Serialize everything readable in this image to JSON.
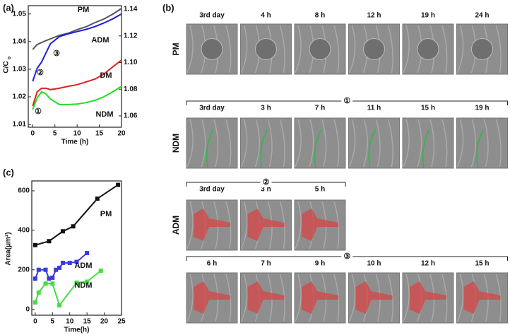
{
  "panel_labels": [
    "(a)",
    "(b)",
    "(c)"
  ],
  "chart_data": [
    {
      "type": "line",
      "xlabel": "Time (h)",
      "ylabel": "C/C",
      "ylabel_sub": "o",
      "x": [
        0,
        1,
        2,
        3,
        4,
        6,
        8,
        10,
        12,
        14,
        16,
        18,
        20
      ],
      "xlim": [
        -1,
        20
      ],
      "xticks": [
        0,
        5,
        10,
        15,
        20
      ],
      "ylim": [
        1.009,
        1.053
      ],
      "yticks": [
        1.01,
        1.02,
        1.03,
        1.04,
        1.05
      ],
      "y2lim": [
        1.0515,
        1.1427
      ],
      "y2ticks": [
        1.06,
        1.08,
        {
          "value": 1.1,
          "label": "1.10"
        },
        1.12,
        1.14
      ],
      "annotations": [
        "①",
        "②",
        "③"
      ],
      "series": [
        {
          "name": "PM",
          "color": "#555555",
          "axis": "y2",
          "values": [
            1.1098,
            1.1135,
            1.1151,
            1.1165,
            1.1178,
            1.1204,
            1.122,
            1.1247,
            1.1268,
            1.13,
            1.1326,
            1.1363,
            1.1405
          ]
        },
        {
          "name": "ADM",
          "color": "#1f1fe0",
          "values": [
            1.0256,
            1.0303,
            1.0326,
            1.0359,
            1.0392,
            1.0418,
            1.0428,
            1.0436,
            1.0444,
            1.0454,
            1.0467,
            1.0482,
            1.05
          ]
        },
        {
          "name": "DM",
          "color": "#e02020",
          "values": [
            1.0167,
            1.0218,
            1.0231,
            1.0231,
            1.0226,
            1.0231,
            1.0238,
            1.0244,
            1.0254,
            1.0264,
            1.0282,
            1.0308,
            1.0333
          ]
        },
        {
          "name": "NDM",
          "color": "#22dd22",
          "values": [
            1.0154,
            1.0197,
            1.0218,
            1.021,
            1.0192,
            1.0172,
            1.0172,
            1.0174,
            1.0179,
            1.0187,
            1.02,
            1.0218,
            1.0238
          ]
        }
      ]
    },
    {
      "type": "line",
      "markers": true,
      "xlabel": "Time(h)",
      "ylabel": "Area(μm²)",
      "xlim": [
        -1,
        25
      ],
      "xticks": [
        0,
        5,
        10,
        15,
        20,
        25
      ],
      "ylim": [
        -30,
        650
      ],
      "yticks": [
        0,
        200,
        400,
        600
      ],
      "series": [
        {
          "name": "PM",
          "color": "#111111",
          "x": [
            0,
            4,
            8,
            11,
            18,
            24
          ],
          "values": [
            325,
            345,
            395,
            420,
            560,
            630
          ]
        },
        {
          "name": "ADM",
          "color": "#3a3adf",
          "x": [
            0,
            1,
            3,
            4,
            5,
            6,
            7,
            8,
            10,
            12,
            15
          ],
          "values": [
            155,
            200,
            200,
            155,
            160,
            200,
            210,
            235,
            235,
            240,
            285
          ]
        },
        {
          "name": "NDM",
          "color": "#44dd44",
          "x": [
            0,
            1,
            3,
            5,
            7,
            12,
            15,
            19
          ],
          "values": [
            35,
            85,
            130,
            130,
            20,
            135,
            140,
            195
          ]
        }
      ]
    }
  ],
  "panel_b": {
    "rows": [
      {
        "name": "PM",
        "labels": [
          "3rd day",
          "4 h",
          "8  h",
          "12 h",
          "19 h",
          "24 h"
        ]
      },
      {
        "name": "NDM",
        "bracket": "①",
        "labels": [
          "3rd day",
          "3 h",
          "7  h",
          "11 h",
          "15 h",
          "19 h"
        ]
      },
      {
        "name": "ADM",
        "bracket": "②",
        "labels": [
          "3rd day",
          "3 h",
          "5 h"
        ]
      },
      {
        "bracket": "③",
        "labels": [
          "6 h",
          "7 h",
          "9 h",
          "10 h",
          "12 h",
          "15 h"
        ]
      }
    ]
  }
}
